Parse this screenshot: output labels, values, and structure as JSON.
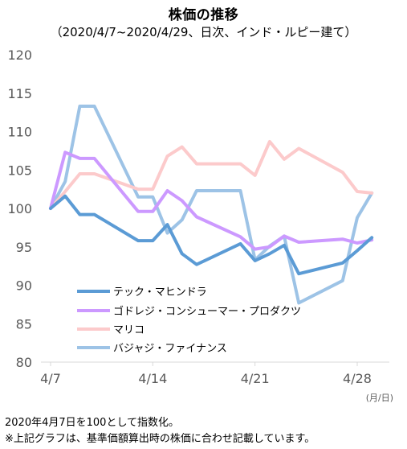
{
  "chart_data": {
    "type": "line",
    "title": "株価の推移",
    "subtitle": "（2020/4/7~2020/4/29、日次、インド・ルピー建て）",
    "x_ticks": [
      {
        "label": "4/7",
        "day": 7
      },
      {
        "label": "4/14",
        "day": 14
      },
      {
        "label": "4/21",
        "day": 21
      },
      {
        "label": "4/28",
        "day": 28
      }
    ],
    "x_unit": "(月/日)",
    "xlim": [
      7,
      29
    ],
    "ylim": [
      80,
      120
    ],
    "y_ticks": [
      80,
      85,
      90,
      95,
      100,
      105,
      110,
      115,
      120
    ],
    "grid": false,
    "legend_position": "bottom-left",
    "series": [
      {
        "name": "テック・マヒンドラ",
        "color": "#5B9BD5",
        "x": [
          7,
          8,
          9,
          10,
          13,
          14,
          15,
          16,
          17,
          20,
          21,
          22,
          23,
          24,
          27,
          28,
          29
        ],
        "values": [
          100,
          101.6,
          99.2,
          99.2,
          95.8,
          95.8,
          97.9,
          94.1,
          92.7,
          95.4,
          93.2,
          94.1,
          95.2,
          91.5,
          92.9,
          94.5,
          96.2
        ]
      },
      {
        "name": "ゴドレジ・コンシューマー・プロダクツ",
        "color": "#CC99FF",
        "x": [
          7,
          8,
          9,
          10,
          13,
          14,
          15,
          16,
          17,
          20,
          21,
          22,
          23,
          24,
          27,
          28,
          29
        ],
        "values": [
          100,
          107.3,
          106.5,
          106.5,
          99.6,
          99.6,
          102.3,
          101,
          98.9,
          96.3,
          94.7,
          95,
          96.4,
          95.6,
          96,
          95.5,
          95.9
        ]
      },
      {
        "name": "マリコ",
        "color": "#FCCACB",
        "x": [
          7,
          8,
          9,
          10,
          13,
          14,
          15,
          16,
          17,
          20,
          21,
          22,
          23,
          24,
          27,
          28,
          29
        ],
        "values": [
          100,
          102.2,
          104.5,
          104.5,
          102.5,
          102.5,
          106.8,
          108,
          105.8,
          105.8,
          104.3,
          108.7,
          106.4,
          107.8,
          104.7,
          102.2,
          102
        ]
      },
      {
        "name": "バジャジ・ファイナンス",
        "color": "#9DC3E6",
        "x": [
          7,
          8,
          9,
          10,
          13,
          14,
          15,
          16,
          17,
          20,
          21,
          22,
          23,
          24,
          27,
          28,
          29
        ],
        "values": [
          100,
          103.5,
          113.3,
          113.3,
          101.5,
          101.5,
          96.8,
          98.5,
          102.3,
          102.3,
          93.3,
          95.1,
          96.4,
          87.7,
          90.6,
          98.8,
          102
        ]
      }
    ]
  },
  "notes": [
    "2020年4月7日を100として指数化。",
    "※上記グラフは、基準価額算出時の株価に合わせ記載しています。"
  ]
}
